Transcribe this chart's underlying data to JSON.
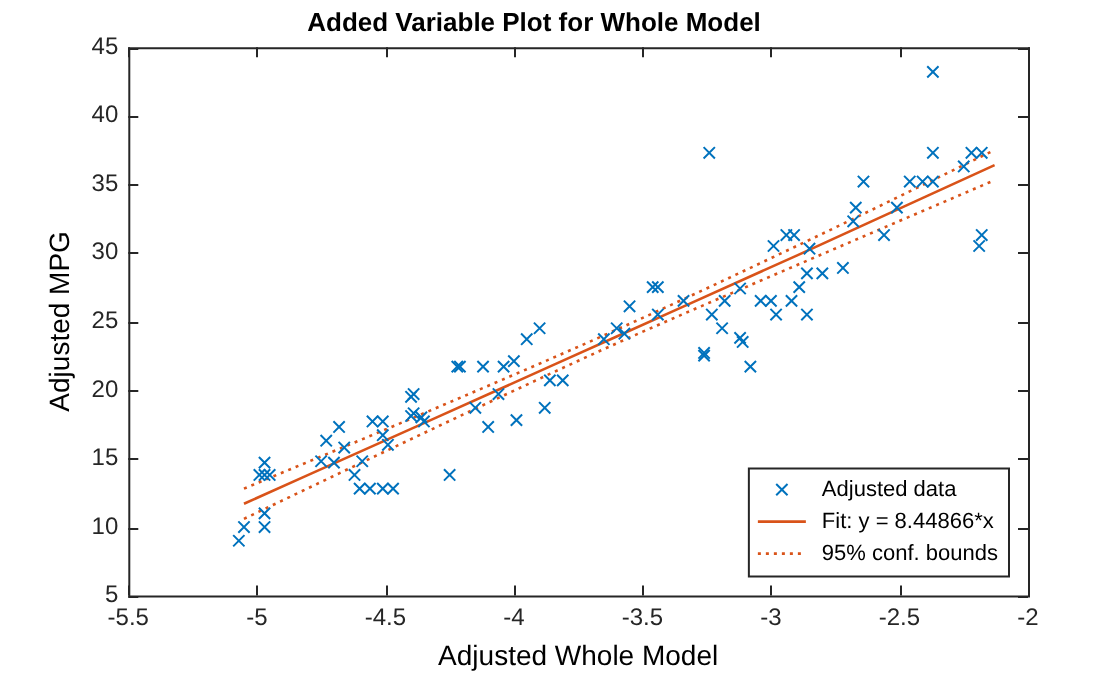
{
  "chart_data": {
    "type": "scatter",
    "title": "Added Variable Plot for Whole Model",
    "xlabel": "Adjusted Whole Model",
    "ylabel": "Adjusted MPG",
    "xlim": [
      -5.5,
      -2
    ],
    "xticks": [
      -5.5,
      -5,
      -4.5,
      -4,
      -3.5,
      -3,
      -2.5,
      -2
    ],
    "ylim": [
      5,
      45
    ],
    "yticks": [
      5,
      10,
      15,
      20,
      25,
      30,
      35,
      40,
      45
    ],
    "grid": false,
    "legend": "bottom right",
    "series": [
      {
        "name": "Adjusted data",
        "type": "scatter",
        "marker": "cross",
        "color": "#0072bd",
        "x": [
          -5.07,
          -5.05,
          -4.97,
          -4.97,
          -4.97,
          -4.97,
          -4.99,
          -4.95,
          -4.73,
          -4.68,
          -4.66,
          -4.75,
          -4.7,
          -4.62,
          -4.6,
          -4.56,
          -4.51,
          -4.47,
          -4.59,
          -4.55,
          -4.51,
          -4.51,
          -4.49,
          -4.4,
          -4.4,
          -4.36,
          -4.25,
          -4.22,
          -4.39,
          -4.39,
          -4.35,
          -4.21,
          -4.12,
          -4.04,
          -4.0,
          -4.1,
          -3.99,
          -4.15,
          -4.06,
          -3.88,
          -3.86,
          -3.81,
          -3.95,
          -3.9,
          -3.65,
          -3.6,
          -3.57,
          -3.55,
          -3.44,
          -3.44,
          -3.34,
          -3.26,
          -3.24,
          -2.37,
          -2.37,
          -2.22,
          -2.18,
          -2.25,
          -2.64,
          -2.46,
          -2.41,
          -2.37,
          -2.51,
          -2.67,
          -2.68,
          -2.56,
          -2.18,
          -2.19,
          -2.94,
          -2.91,
          -2.99,
          -2.85,
          -2.72,
          -2.8,
          -2.86,
          -2.89,
          -2.92,
          -2.86,
          -2.98,
          -3.0,
          -3.04,
          -3.12,
          -3.18,
          -3.23,
          -3.19,
          -3.12,
          -3.11,
          -3.26,
          -3.08,
          -3.46
        ],
        "values": [
          9,
          10,
          10,
          11,
          13.8,
          14.7,
          13.8,
          13.8,
          16.3,
          17.3,
          15.8,
          14.8,
          14.7,
          13.8,
          12.8,
          12.8,
          12.8,
          12.8,
          14.8,
          17.7,
          17.7,
          16.7,
          16,
          19.5,
          18.1,
          18,
          13.8,
          21.7,
          19.7,
          18.3,
          17.7,
          21.7,
          21.7,
          21.7,
          22.1,
          17.3,
          17.8,
          18.7,
          19.7,
          18.7,
          20.7,
          20.7,
          23.7,
          24.5,
          23.7,
          24.5,
          24.1,
          26.1,
          27.5,
          25.5,
          26.5,
          22.5,
          37.3,
          43.2,
          37.3,
          37.3,
          37.3,
          36.3,
          35.2,
          35.2,
          35.2,
          35.2,
          33.3,
          33.3,
          32.3,
          31.3,
          31.3,
          30.5,
          31.3,
          31.3,
          30.5,
          30.3,
          28.9,
          28.5,
          28.5,
          27.5,
          26.5,
          25.5,
          25.5,
          26.5,
          26.5,
          27.4,
          26.5,
          25.5,
          24.5,
          23.8,
          23.5,
          22.7,
          21.7,
          27.5
        ]
      },
      {
        "name": "Fit: y = 8.44866*x",
        "type": "line",
        "marker": "none",
        "line_style": "solid",
        "color": "#d95319",
        "x": [
          -5.05,
          -4.3,
          -3.6,
          -2.9,
          -2.13
        ],
        "values": [
          11.7,
          18.0,
          23.9,
          29.8,
          36.4
        ]
      },
      {
        "name": "95% conf. bounds",
        "type": "line",
        "marker": "none",
        "line_style": "dotted",
        "color": "#d95319",
        "x": [
          -5.05,
          -4.3,
          -3.6,
          -2.9,
          -2.13
        ],
        "values": [
          12.8,
          18.7,
          24.4,
          30.5,
          37.5
        ]
      },
      {
        "type": "line",
        "marker": "none",
        "line_style": "dotted",
        "color": "#d95319",
        "x": [
          -5.05,
          -4.3,
          -3.6,
          -2.9,
          -2.13
        ],
        "values": [
          10.6,
          17.3,
          23.4,
          29.1,
          35.3
        ]
      }
    ]
  }
}
